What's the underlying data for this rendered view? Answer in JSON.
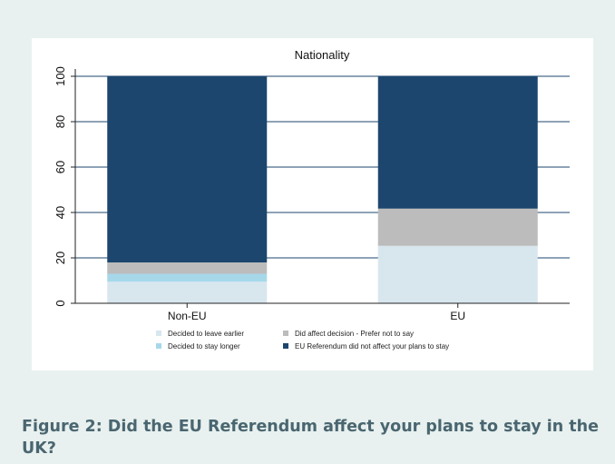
{
  "chart_data": {
    "type": "bar",
    "stacked": true,
    "title": "Nationality",
    "xlabel": "",
    "ylabel": "",
    "categories": [
      "Non-EU",
      "EU"
    ],
    "ylim": [
      0,
      100
    ],
    "yticks": [
      0,
      20,
      40,
      60,
      80,
      100
    ],
    "grid": true,
    "legend_position": "bottom",
    "series": [
      {
        "name": "Decided to leave earlier",
        "color": "#d8e6ee",
        "values": [
          9.5,
          25.3
        ]
      },
      {
        "name": "Decided to stay longer",
        "color": "#a6d8ea",
        "values": [
          3.5,
          0
        ]
      },
      {
        "name": "Did affect decision - Prefer not to say",
        "color": "#bcbcbc",
        "values": [
          5.0,
          16.4
        ]
      },
      {
        "name": "EU Referendum did not affect your plans to stay",
        "color": "#1c466d",
        "values": [
          82.0,
          58.3
        ]
      }
    ]
  },
  "caption": "Figure 2: Did the EU Referendum affect your plans to stay in the UK?"
}
